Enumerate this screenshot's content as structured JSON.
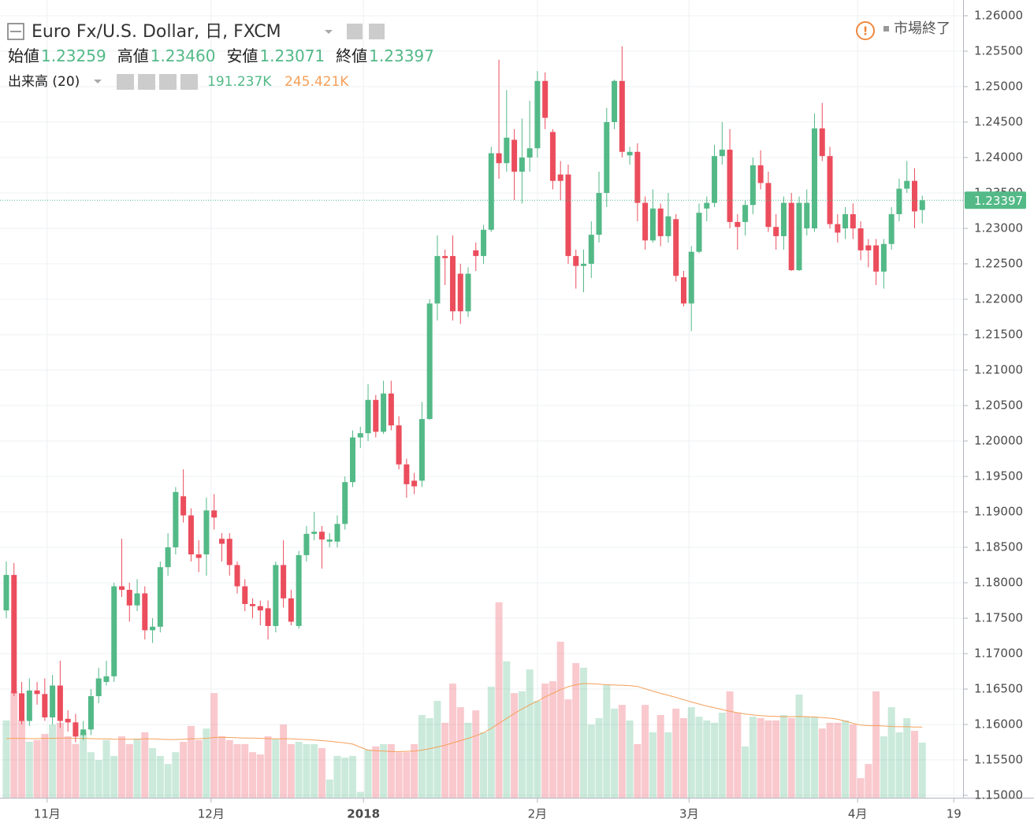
{
  "chart_data": {
    "type": "candlestick",
    "title": "Euro Fx/U.S. Dollar, 日, FXCM",
    "status": "市場終了",
    "header": {
      "open_label": "始値",
      "open": "1.23259",
      "high_label": "高値",
      "high": "1.23460",
      "low_label": "安値",
      "low": "1.23071",
      "close_label": "終値",
      "close": "1.23397",
      "volume_label": "出来高 (20)",
      "volume": "191.237K",
      "volume_ma": "245.421K"
    },
    "last_price_label": "1.23397",
    "up_color": "#53b987",
    "down_color": "#eb4d5c",
    "ma_color": "#f5a05a",
    "open": [
      1.1761,
      1.1811,
      1.1644,
      1.1605,
      1.1648,
      1.1643,
      1.161,
      1.1655,
      1.1608,
      1.1603,
      1.1585,
      1.1593,
      1.164,
      1.166,
      1.1668,
      1.1795,
      1.179,
      1.1768,
      1.1785,
      1.1733,
      1.1738,
      1.1822,
      1.185,
      1.1922,
      1.1895,
      1.184,
      1.184,
      1.1902,
      1.1862,
      1.1862,
      1.1825,
      1.1795,
      1.177,
      1.1767,
      1.1764,
      1.1739,
      1.1825,
      1.1778,
      1.1739,
      1.1839,
      1.1869,
      1.1872,
      1.1858,
      1.1858,
      1.1883,
      1.1942,
      1.2005,
      1.2011,
      1.2058,
      1.2013,
      1.2067,
      1.2022,
      1.1967,
      1.1944,
      1.1944,
      1.2031,
      1.2194,
      1.2261,
      1.2261,
      1.2236,
      1.2183,
      1.2269,
      1.2261,
      1.2298,
      1.2406,
      1.2392,
      1.2425,
      1.238,
      1.24,
      1.2413,
      1.2508,
      1.2436,
      1.2376,
      1.2376,
      1.2261,
      1.2247,
      1.225,
      1.2291,
      1.235,
      1.245,
      1.2508,
      1.2403,
      1.2408,
      1.2336,
      1.2283,
      1.2328,
      1.2289,
      1.2313,
      1.2231,
      1.2194,
      1.2267,
      1.2328,
      1.2336,
      1.2402,
      1.2411,
      1.2309,
      1.2309,
      1.2333,
      1.2389,
      1.2364,
      1.2302,
      1.2289,
      1.2336,
      1.2241,
      1.23,
      1.23,
      1.2441,
      1.2402,
      1.2306,
      1.23,
      1.232,
      1.23,
      1.2276,
      1.2276,
      1.2239,
      1.2278,
      1.232,
      1.2356,
      1.2367,
      1.23259
    ],
    "high": [
      1.183,
      1.1828,
      1.166,
      1.1665,
      1.166,
      1.1665,
      1.167,
      1.169,
      1.162,
      1.1615,
      1.1605,
      1.165,
      1.168,
      1.169,
      1.18,
      1.1862,
      1.18,
      1.1805,
      1.1795,
      1.175,
      1.183,
      1.187,
      1.1935,
      1.196,
      1.1905,
      1.186,
      1.192,
      1.1925,
      1.187,
      1.187,
      1.183,
      1.1805,
      1.1778,
      1.1775,
      1.1775,
      1.183,
      1.186,
      1.179,
      1.1845,
      1.188,
      1.19,
      1.188,
      1.187,
      1.1895,
      1.195,
      1.2015,
      1.202,
      1.208,
      1.2065,
      1.2085,
      1.2085,
      1.2035,
      1.1975,
      1.1955,
      1.2055,
      1.22,
      1.229,
      1.227,
      1.229,
      1.225,
      1.2245,
      1.228,
      1.2305,
      1.2415,
      1.2538,
      1.2495,
      1.244,
      1.2455,
      1.248,
      1.2522,
      1.252,
      1.244,
      1.2395,
      1.239,
      1.227,
      1.227,
      1.231,
      1.238,
      1.247,
      1.251,
      1.2557,
      1.2415,
      1.242,
      1.2345,
      1.2355,
      1.2335,
      1.235,
      1.232,
      1.224,
      1.2275,
      1.2335,
      1.2345,
      1.2418,
      1.245,
      1.244,
      1.232,
      1.234,
      1.24,
      1.241,
      1.238,
      1.232,
      1.2345,
      1.235,
      1.2345,
      1.2355,
      1.2462,
      1.2477,
      1.2415,
      1.232,
      1.233,
      1.2335,
      1.231,
      1.2285,
      1.2285,
      1.2285,
      1.233,
      1.237,
      1.2395,
      1.2385,
      1.2346
    ],
    "low": [
      1.175,
      1.164,
      1.16,
      1.1598,
      1.1628,
      1.1605,
      1.16,
      1.1595,
      1.159,
      1.1575,
      1.1578,
      1.1585,
      1.163,
      1.1655,
      1.166,
      1.178,
      1.1745,
      1.176,
      1.172,
      1.1715,
      1.173,
      1.181,
      1.184,
      1.1885,
      1.183,
      1.1815,
      1.181,
      1.1875,
      1.183,
      1.181,
      1.1785,
      1.176,
      1.175,
      1.174,
      1.172,
      1.173,
      1.1765,
      1.174,
      1.1735,
      1.183,
      1.186,
      1.182,
      1.185,
      1.185,
      1.1875,
      1.1935,
      1.199,
      1.2,
      1.2005,
      1.201,
      1.2015,
      1.196,
      1.192,
      1.1925,
      1.1935,
      1.203,
      1.217,
      1.222,
      1.217,
      1.2165,
      1.2175,
      1.224,
      1.225,
      1.2295,
      1.237,
      1.238,
      1.234,
      1.2335,
      1.238,
      1.24,
      1.244,
      1.2355,
      1.234,
      1.225,
      1.2215,
      1.221,
      1.223,
      1.228,
      1.233,
      1.244,
      1.24,
      1.239,
      1.231,
      1.227,
      1.228,
      1.2275,
      1.228,
      1.2225,
      1.219,
      1.2155,
      1.2265,
      1.231,
      1.233,
      1.239,
      1.23,
      1.227,
      1.229,
      1.232,
      1.2355,
      1.2295,
      1.227,
      1.227,
      1.224,
      1.224,
      1.229,
      1.2295,
      1.2395,
      1.23,
      1.228,
      1.2285,
      1.2285,
      1.2255,
      1.2245,
      1.222,
      1.2215,
      1.227,
      1.231,
      1.235,
      1.23,
      1.23071
    ],
    "close": [
      1.1811,
      1.1644,
      1.1605,
      1.1648,
      1.1643,
      1.161,
      1.1655,
      1.1605,
      1.1603,
      1.1583,
      1.1593,
      1.164,
      1.1665,
      1.1668,
      1.1795,
      1.179,
      1.1768,
      1.1785,
      1.1733,
      1.1738,
      1.1822,
      1.185,
      1.1928,
      1.1895,
      1.184,
      1.1835,
      1.1902,
      1.1892,
      1.1855,
      1.1825,
      1.1795,
      1.177,
      1.1767,
      1.1761,
      1.1739,
      1.1825,
      1.1778,
      1.1745,
      1.1839,
      1.1869,
      1.1872,
      1.1861,
      1.1861,
      1.1883,
      1.1942,
      1.2005,
      1.2011,
      1.2058,
      1.2013,
      1.2067,
      1.2022,
      1.1967,
      1.1939,
      1.1936,
      1.2031,
      1.2194,
      1.2261,
      1.2258,
      1.2183,
      1.2183,
      1.2236,
      1.2261,
      1.2298,
      1.2406,
      1.2392,
      1.2428,
      1.238,
      1.24,
      1.2413,
      1.2508,
      1.2456,
      1.2367,
      1.2367,
      1.2261,
      1.2247,
      1.225,
      1.2291,
      1.235,
      1.245,
      1.2508,
      1.2408,
      1.2408,
      1.2336,
      1.2283,
      1.2328,
      1.2289,
      1.2317,
      1.2233,
      1.2194,
      1.2267,
      1.2322,
      1.2336,
      1.2402,
      1.2411,
      1.2309,
      1.2302,
      1.2333,
      1.2389,
      1.2364,
      1.2302,
      1.2289,
      1.2336,
      1.2241,
      1.2336,
      1.2336,
      1.2441,
      1.2402,
      1.2306,
      1.2294,
      1.232,
      1.23,
      1.2269,
      1.2269,
      1.2239,
      1.2278,
      1.232,
      1.2356,
      1.2367,
      1.2324,
      1.23397
    ],
    "volume": [
      268,
      369,
      268,
      194,
      200,
      221,
      254,
      260,
      213,
      186,
      227,
      158,
      131,
      200,
      145,
      213,
      186,
      205,
      227,
      172,
      145,
      117,
      158,
      194,
      249,
      200,
      240,
      363,
      213,
      200,
      186,
      186,
      158,
      150,
      213,
      205,
      254,
      186,
      194,
      186,
      186,
      172,
      63,
      145,
      139,
      145,
      20,
      167,
      178,
      186,
      186,
      158,
      158,
      186,
      287,
      276,
      336,
      260,
      396,
      314,
      260,
      303,
      227,
      385,
      678,
      473,
      363,
      369,
      445,
      336,
      396,
      404,
      541,
      341,
      467,
      451,
      254,
      276,
      391,
      309,
      322,
      268,
      186,
      322,
      227,
      287,
      227,
      309,
      276,
      314,
      281,
      268,
      260,
      295,
      369,
      295,
      178,
      281,
      276,
      268,
      268,
      287,
      276,
      358,
      281,
      281,
      240,
      260,
      260,
      268,
      254,
      68,
      117,
      369,
      213,
      314,
      227,
      276,
      232,
      191.237
    ],
    "volume_ma": [
      205,
      206,
      206,
      205,
      205,
      206,
      206,
      207,
      207,
      206,
      206,
      205,
      204,
      204,
      203,
      203,
      203,
      203,
      204,
      204,
      203,
      202,
      202,
      203,
      204,
      205,
      206,
      209,
      210,
      209,
      208,
      207,
      207,
      206,
      205,
      204,
      205,
      204,
      203,
      202,
      200,
      198,
      196,
      193,
      190,
      186,
      175,
      165,
      163,
      162,
      160,
      160,
      161,
      162,
      165,
      170,
      176,
      182,
      190,
      198,
      206,
      215,
      225,
      240,
      258,
      275,
      292,
      308,
      322,
      335,
      350,
      362,
      375,
      385,
      392,
      396,
      395,
      394,
      392,
      391,
      390,
      389,
      386,
      378,
      370,
      362,
      355,
      348,
      340,
      332,
      325,
      318,
      312,
      306,
      300,
      295,
      290,
      287,
      285,
      283,
      282,
      281,
      281,
      282,
      281,
      280,
      278,
      276,
      272,
      266,
      258,
      252,
      250,
      250,
      249,
      247,
      246,
      246,
      245,
      245.421
    ],
    "ylim": [
      1.14967,
      1.26111
    ],
    "volume_ylim": [
      0,
      2740
    ],
    "xlim": [
      -0.82,
      124.3
    ],
    "yticks": [
      {
        "value": 1.15,
        "label": "1.15000"
      },
      {
        "value": 1.155,
        "label": "1.15500"
      },
      {
        "value": 1.16,
        "label": "1.16000"
      },
      {
        "value": 1.165,
        "label": "1.16500"
      },
      {
        "value": 1.17,
        "label": "1.17000"
      },
      {
        "value": 1.175,
        "label": "1.17500"
      },
      {
        "value": 1.18,
        "label": "1.18000"
      },
      {
        "value": 1.185,
        "label": "1.18500"
      },
      {
        "value": 1.19,
        "label": "1.19000"
      },
      {
        "value": 1.195,
        "label": "1.19500"
      },
      {
        "value": 1.2,
        "label": "1.20000"
      },
      {
        "value": 1.205,
        "label": "1.20500"
      },
      {
        "value": 1.21,
        "label": "1.21000"
      },
      {
        "value": 1.215,
        "label": "1.21500"
      },
      {
        "value": 1.22,
        "label": "1.22000"
      },
      {
        "value": 1.225,
        "label": "1.22500"
      },
      {
        "value": 1.23,
        "label": "1.23000"
      },
      {
        "value": 1.235,
        "label": "1.23500"
      },
      {
        "value": 1.24,
        "label": "1.24000"
      },
      {
        "value": 1.245,
        "label": "1.24500"
      },
      {
        "value": 1.25,
        "label": "1.25000"
      },
      {
        "value": 1.255,
        "label": "1.25500"
      },
      {
        "value": 1.26,
        "label": "1.26000"
      }
    ],
    "xticks": [
      {
        "value": 5.3,
        "label": "11月"
      },
      {
        "value": 26.6,
        "label": "12月"
      },
      {
        "value": 46.4,
        "label": "2018"
      },
      {
        "value": 69.0,
        "label": "2月"
      },
      {
        "value": 88.7,
        "label": "3月"
      },
      {
        "value": 110.6,
        "label": "4月"
      },
      {
        "value": 123.1,
        "label": "19"
      }
    ],
    "grid": true
  }
}
